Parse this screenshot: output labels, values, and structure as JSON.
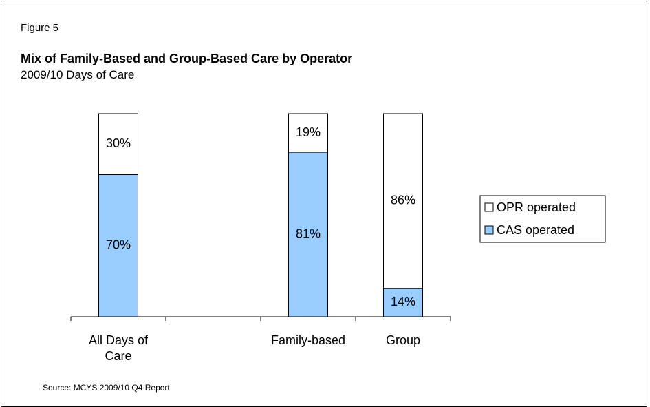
{
  "chart_data": {
    "type": "stacked_bar",
    "figure_label": "Figure 5",
    "title": "Mix of Family-Based and Group-Based Care by Operator",
    "subtitle": "2009/10 Days of Care",
    "source": "Source:   MCYS 2009/10 Q4 Report",
    "categories": [
      "All Days of Care",
      null,
      "Family-based",
      "Group"
    ],
    "series": [
      {
        "name": "CAS operated",
        "color": "#99ccff",
        "values": [
          70,
          null,
          81,
          14
        ],
        "value_labels": [
          "70%",
          null,
          "81%",
          "14%"
        ]
      },
      {
        "name": "OPR operated",
        "color": "#ffffff",
        "values": [
          30,
          null,
          19,
          86
        ],
        "value_labels": [
          "30%",
          null,
          "19%",
          "86%"
        ]
      }
    ],
    "ylim": [
      0,
      100
    ],
    "legend": "right"
  }
}
